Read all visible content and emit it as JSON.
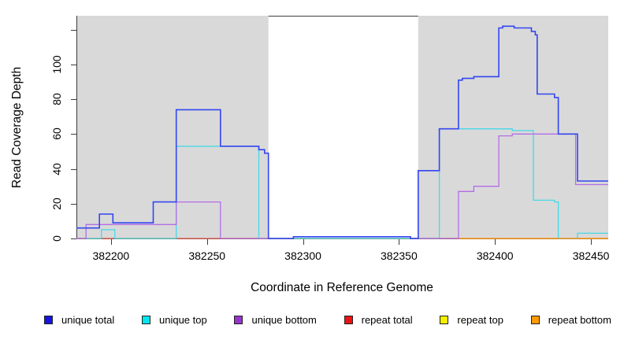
{
  "y_axis": {
    "label": "Read Coverage Depth",
    "ticks": [
      0,
      20,
      40,
      60,
      80,
      100
    ],
    "unlabeled_ticks": [
      120
    ]
  },
  "x_axis": {
    "label": "Coordinate in Reference Genome",
    "ticks": [
      382200,
      382250,
      382300,
      382350,
      382400,
      382450
    ]
  },
  "legend": {
    "items": [
      {
        "label": "unique total",
        "swatch_color": "#1515e0"
      },
      {
        "label": "unique top",
        "swatch_color": "#00e5ee"
      },
      {
        "label": "unique bottom",
        "swatch_color": "#9933cc"
      },
      {
        "label": "repeat total",
        "swatch_color": "#ee1111"
      },
      {
        "label": "repeat top",
        "swatch_color": "#f5ee00"
      },
      {
        "label": "repeat bottom",
        "swatch_color": "#ff9900"
      }
    ]
  },
  "chart_data": {
    "type": "line",
    "subtype": "step-coverage",
    "xlim": [
      382182,
      382459
    ],
    "ylim": [
      0,
      128
    ],
    "grid": false,
    "background_color": "#ffffff",
    "shaded_regions": [
      {
        "x0": 382182,
        "x1": 382282,
        "color": "#d9d9d9"
      },
      {
        "x0": 382360,
        "x1": 382459,
        "color": "#d9d9d9"
      }
    ],
    "series": [
      {
        "name": "repeat top",
        "color": "#f0e000",
        "width": 1.2,
        "steps": [
          [
            382182,
            0
          ],
          [
            382459,
            0
          ]
        ]
      },
      {
        "name": "repeat total",
        "color": "#e25566",
        "width": 1.2,
        "steps": [
          [
            382182,
            0
          ],
          [
            382459,
            0
          ]
        ]
      },
      {
        "name": "unique top",
        "color": "#45d9e6",
        "width": 1.3,
        "steps": [
          [
            382182,
            0
          ],
          [
            382195,
            5
          ],
          [
            382202,
            0
          ],
          [
            382234,
            53
          ],
          [
            382277,
            0
          ],
          [
            382371,
            63
          ],
          [
            382409,
            62
          ],
          [
            382420,
            22
          ],
          [
            382431,
            21
          ],
          [
            382433,
            0
          ],
          [
            382443,
            3
          ],
          [
            382459,
            3
          ]
        ]
      },
      {
        "name": "repeat bottom",
        "color": "#ff9d1e",
        "width": 1.3,
        "steps": [
          [
            382182,
            null
          ],
          [
            382195,
            0
          ],
          [
            382202,
            null
          ],
          [
            382234,
            0
          ],
          [
            382257,
            null
          ],
          [
            382380,
            0
          ],
          [
            382459,
            0
          ]
        ]
      },
      {
        "name": "unique bottom",
        "color": "#b36ee6",
        "width": 1.3,
        "steps": [
          [
            382182,
            0
          ],
          [
            382187,
            8
          ],
          [
            382234,
            21
          ],
          [
            382257,
            0
          ],
          [
            382295,
            1
          ],
          [
            382356,
            0
          ],
          [
            382381,
            27
          ],
          [
            382389,
            30
          ],
          [
            382402,
            59
          ],
          [
            382409,
            60
          ],
          [
            382442,
            31
          ],
          [
            382459,
            31
          ]
        ]
      },
      {
        "name": "unique total",
        "color": "#3346f0",
        "width": 1.6,
        "steps": [
          [
            382182,
            6
          ],
          [
            382194,
            14
          ],
          [
            382201,
            9
          ],
          [
            382222,
            21
          ],
          [
            382234,
            74
          ],
          [
            382257,
            53
          ],
          [
            382277,
            51
          ],
          [
            382280,
            49
          ],
          [
            382282,
            0
          ],
          [
            382295,
            1
          ],
          [
            382356,
            0
          ],
          [
            382360,
            39
          ],
          [
            382371,
            63
          ],
          [
            382381,
            91
          ],
          [
            382383,
            92
          ],
          [
            382389,
            93
          ],
          [
            382402,
            121
          ],
          [
            382404,
            122
          ],
          [
            382410,
            121
          ],
          [
            382419,
            119
          ],
          [
            382421,
            117
          ],
          [
            382422,
            83
          ],
          [
            382431,
            81
          ],
          [
            382433,
            60
          ],
          [
            382443,
            33
          ],
          [
            382459,
            33
          ]
        ]
      }
    ]
  }
}
